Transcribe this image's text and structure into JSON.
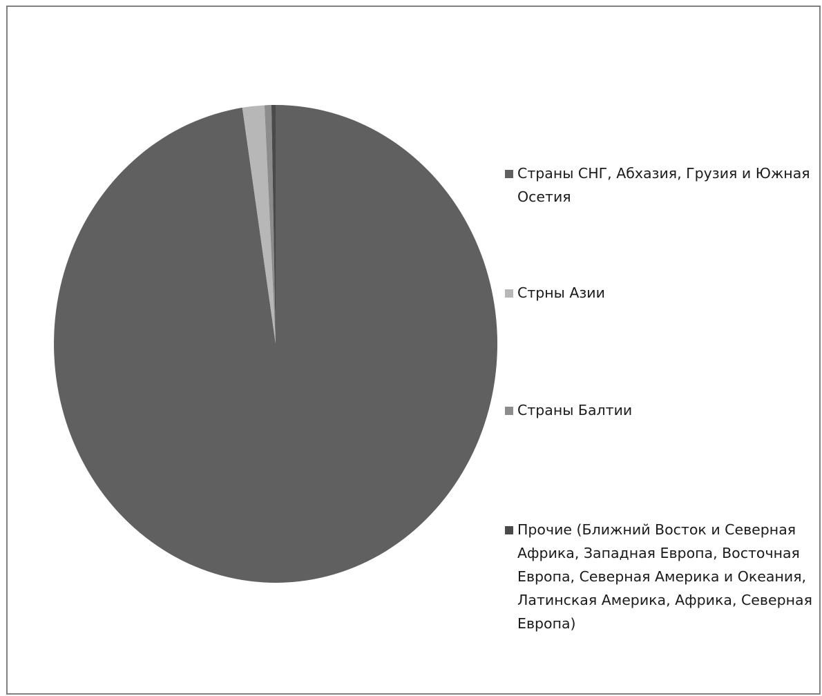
{
  "chart_data": {
    "type": "pie",
    "title": "",
    "categories": [
      "Страны СНГ, Абхазия, Грузия и Южная Осетия",
      "Стрны Азии",
      "Страны Балтии",
      "Прочие (Ближний Восток и Северная Африка, Западная Европа, Восточная Европа, Северная Америка и Океания, Латинская Америка, Африка, Северная Европа)"
    ],
    "values": [
      97.6,
      1.6,
      0.5,
      0.3
    ],
    "colors": [
      "#606060",
      "#b7b7b7",
      "#8c8c8c",
      "#4a4a4a"
    ],
    "legend_position": "right",
    "start_angle": "12 o'clock, clockwise"
  }
}
